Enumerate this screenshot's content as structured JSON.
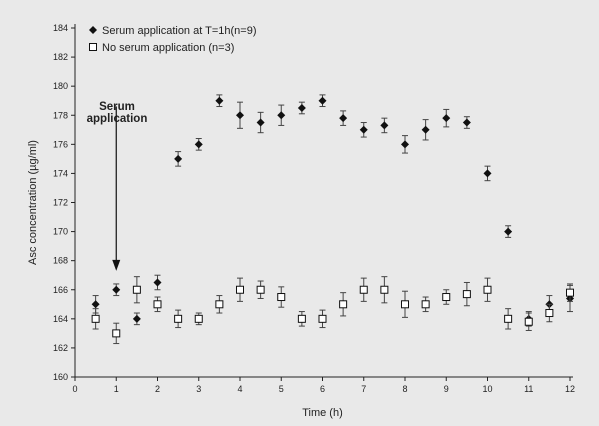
{
  "chart_data": {
    "type": "scatter",
    "xlabel": "Time (h)",
    "ylabel": "Asc concentration (µg/ml)",
    "xlim": [
      0,
      12
    ],
    "ylim": [
      160,
      184
    ],
    "x_ticks": [
      0,
      1,
      2,
      3,
      4,
      5,
      6,
      7,
      8,
      9,
      10,
      11,
      12
    ],
    "y_ticks": [
      160,
      162,
      164,
      166,
      168,
      170,
      172,
      174,
      176,
      178,
      180,
      182,
      184
    ],
    "grid": false,
    "legend_position": "top-left",
    "annotation": {
      "lines": [
        "Serum",
        "application"
      ],
      "arrow_x": 1,
      "arrow_from_y": 178.6,
      "arrow_to_y": 167.3
    },
    "series": [
      {
        "name": "Serum application at T=1h(n=9)",
        "marker": "filled-diamond",
        "color": "#111111",
        "points": [
          {
            "x": 0.5,
            "y": 165.0,
            "err": 0.6
          },
          {
            "x": 1.0,
            "y": 166.0,
            "err": 0.4
          },
          {
            "x": 1.5,
            "y": 164.0,
            "err": 0.4
          },
          {
            "x": 2.0,
            "y": 166.5,
            "err": 0.5
          },
          {
            "x": 2.5,
            "y": 175.0,
            "err": 0.5
          },
          {
            "x": 3.0,
            "y": 176.0,
            "err": 0.4
          },
          {
            "x": 3.5,
            "y": 179.0,
            "err": 0.4
          },
          {
            "x": 4.0,
            "y": 178.0,
            "err": 0.9
          },
          {
            "x": 4.5,
            "y": 177.5,
            "err": 0.7
          },
          {
            "x": 5.0,
            "y": 178.0,
            "err": 0.7
          },
          {
            "x": 5.5,
            "y": 178.5,
            "err": 0.4
          },
          {
            "x": 6.0,
            "y": 179.0,
            "err": 0.4
          },
          {
            "x": 6.5,
            "y": 177.8,
            "err": 0.5
          },
          {
            "x": 7.0,
            "y": 177.0,
            "err": 0.5
          },
          {
            "x": 7.5,
            "y": 177.3,
            "err": 0.5
          },
          {
            "x": 8.0,
            "y": 176.0,
            "err": 0.6
          },
          {
            "x": 8.5,
            "y": 177.0,
            "err": 0.7
          },
          {
            "x": 9.0,
            "y": 177.8,
            "err": 0.6
          },
          {
            "x": 9.5,
            "y": 177.5,
            "err": 0.4
          },
          {
            "x": 10.0,
            "y": 174.0,
            "err": 0.5
          },
          {
            "x": 10.5,
            "y": 170.0,
            "err": 0.4
          },
          {
            "x": 11.0,
            "y": 164.0,
            "err": 0.5
          },
          {
            "x": 11.5,
            "y": 165.0,
            "err": 0.6
          },
          {
            "x": 12.0,
            "y": 165.4,
            "err": 0.9
          }
        ]
      },
      {
        "name": "No serum application (n=3)",
        "marker": "open-square",
        "color": "#111111",
        "points": [
          {
            "x": 0.5,
            "y": 164.0,
            "err": 0.7
          },
          {
            "x": 1.0,
            "y": 163.0,
            "err": 0.7
          },
          {
            "x": 1.5,
            "y": 166.0,
            "err": 0.9
          },
          {
            "x": 2.0,
            "y": 165.0,
            "err": 0.5
          },
          {
            "x": 2.5,
            "y": 164.0,
            "err": 0.6
          },
          {
            "x": 3.0,
            "y": 164.0,
            "err": 0.4
          },
          {
            "x": 3.5,
            "y": 165.0,
            "err": 0.6
          },
          {
            "x": 4.0,
            "y": 166.0,
            "err": 0.8
          },
          {
            "x": 4.5,
            "y": 166.0,
            "err": 0.6
          },
          {
            "x": 5.0,
            "y": 165.5,
            "err": 0.7
          },
          {
            "x": 5.5,
            "y": 164.0,
            "err": 0.5
          },
          {
            "x": 6.0,
            "y": 164.0,
            "err": 0.6
          },
          {
            "x": 6.5,
            "y": 165.0,
            "err": 0.8
          },
          {
            "x": 7.0,
            "y": 166.0,
            "err": 0.8
          },
          {
            "x": 7.5,
            "y": 166.0,
            "err": 0.9
          },
          {
            "x": 8.0,
            "y": 165.0,
            "err": 0.9
          },
          {
            "x": 8.5,
            "y": 165.0,
            "err": 0.5
          },
          {
            "x": 9.0,
            "y": 165.5,
            "err": 0.5
          },
          {
            "x": 9.5,
            "y": 165.7,
            "err": 0.8
          },
          {
            "x": 10.0,
            "y": 166.0,
            "err": 0.8
          },
          {
            "x": 10.5,
            "y": 164.0,
            "err": 0.7
          },
          {
            "x": 11.0,
            "y": 163.8,
            "err": 0.6
          },
          {
            "x": 11.5,
            "y": 164.4,
            "err": 0.6
          },
          {
            "x": 12.0,
            "y": 165.8,
            "err": 0.6
          }
        ]
      }
    ]
  }
}
